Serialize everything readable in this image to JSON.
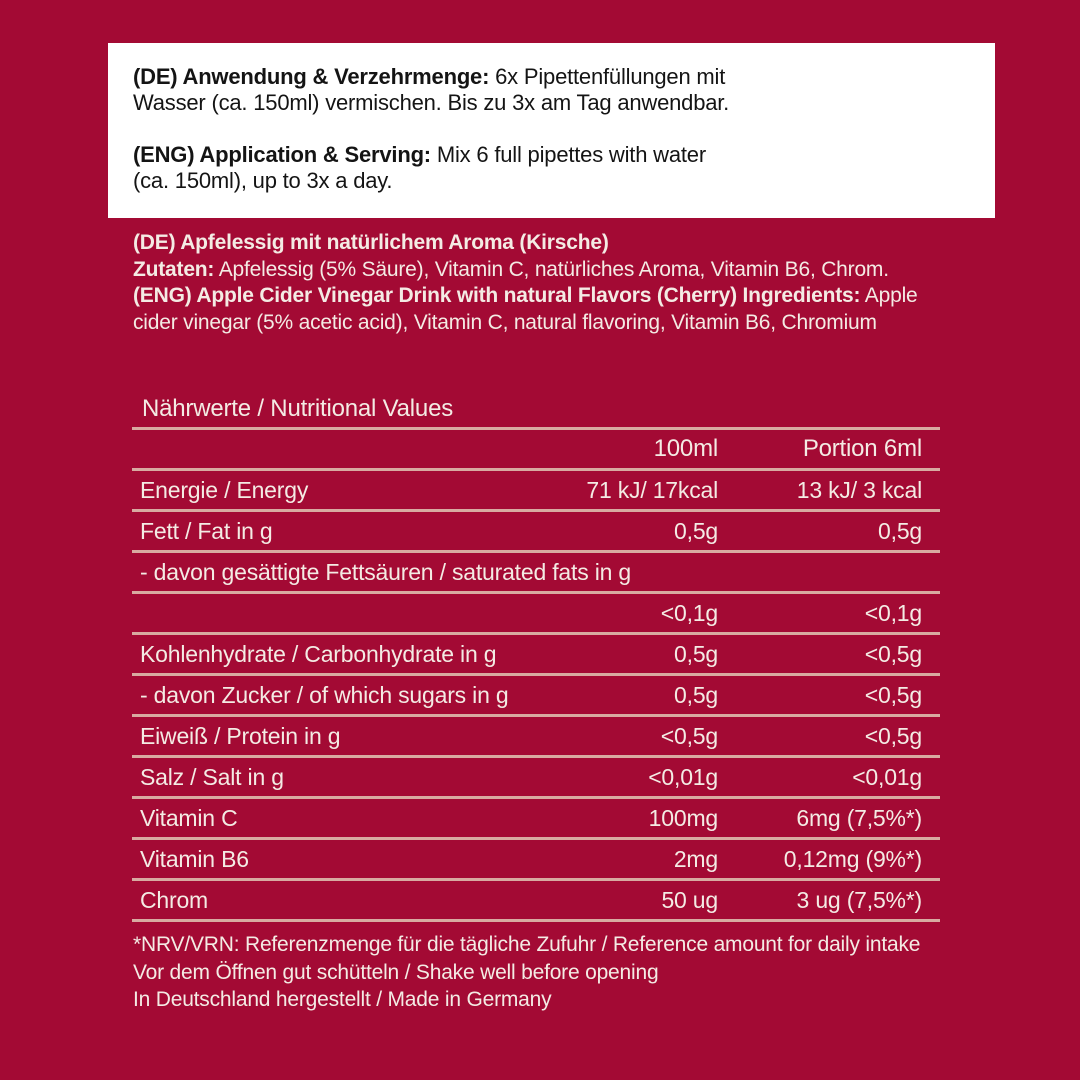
{
  "colors": {
    "background": "#A30A34",
    "panel": "#FFFFFF",
    "panel_text": "#141414",
    "label_text": "#F4EBE4",
    "rule": "#D8ABA1"
  },
  "usage": {
    "de_bold": "(DE) Anwendung & Verzehrmenge:",
    "de_line1_rest": " 6x Pipettenfüllungen mit",
    "de_line2": "Wasser (ca. 150ml) vermischen. Bis zu 3x am Tag anwendbar.",
    "eng_bold": "(ENG) Application & Serving:",
    "eng_line1_rest": " Mix 6 full pipettes with water",
    "eng_line2": "(ca. 150ml), up to 3x a day."
  },
  "ingredients": {
    "de_title": "(DE) Apfelessig mit natürlichem Aroma (Kirsche)",
    "de_label": "Zutaten:",
    "de_list": " Apfelessig (5% Säure), Vitamin C, natürliches Aroma, Vitamin B6, Chrom.",
    "eng_bold": "(ENG) Apple Cider Vinegar Drink with natural Flavors (Cherry) Ingredients:",
    "eng_line1_rest": " Apple",
    "eng_line2": "cider vinegar (5% acetic acid), Vitamin C, natural flavoring, Vitamin B6, Chromium"
  },
  "nutrition": {
    "title": "Nährwerte / Nutritional Values",
    "col_headers": {
      "per100": "100ml",
      "portion": "Portion 6ml"
    },
    "rows": [
      {
        "label": "Energie / Energy",
        "per100": "71 kJ/ 17kcal",
        "portion": "13 kJ/ 3 kcal"
      },
      {
        "label": "Fett / Fat in g",
        "per100": "0,5g",
        "portion": "0,5g"
      },
      {
        "label": "- davon gesättigte Fettsäuren / saturated fats in g",
        "per100": "",
        "portion": ""
      },
      {
        "label": "",
        "per100": "<0,1g",
        "portion": "<0,1g"
      },
      {
        "label": "Kohlenhydrate / Carbonhydrate in g",
        "per100": "0,5g",
        "portion": "<0,5g"
      },
      {
        "label": "- davon Zucker / of which sugars in g",
        "per100": "0,5g",
        "portion": "<0,5g"
      },
      {
        "label": "Eiweiß / Protein in g",
        "per100": "<0,5g",
        "portion": "<0,5g"
      },
      {
        "label": "Salz / Salt in g",
        "per100": "<0,01g",
        "portion": "<0,01g"
      },
      {
        "label": "Vitamin C",
        "per100": "100mg",
        "portion": "6mg (7,5%*)"
      },
      {
        "label": "Vitamin B6",
        "per100": "2mg",
        "portion": "0,12mg (9%*)"
      },
      {
        "label": "Chrom",
        "per100": "50 ug",
        "portion": "3 ug (7,5%*)"
      }
    ]
  },
  "footnotes": {
    "nrv": "*NRV/VRN: Referenzmenge für die tägliche Zufuhr / Reference amount for daily intake",
    "shake": "Vor dem Öffnen gut schütteln / Shake well before opening",
    "origin": "In Deutschland hergestellt / Made in Germany"
  }
}
